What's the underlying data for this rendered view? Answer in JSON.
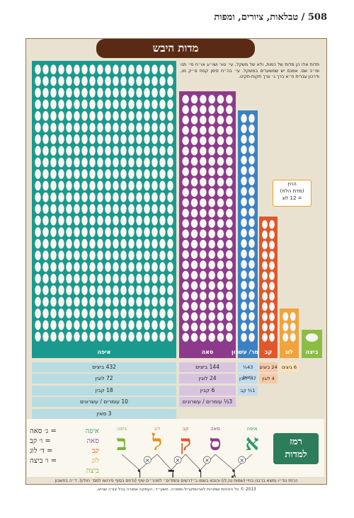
{
  "header": {
    "page_title": "508 / טבלאות, ציורים, ומפות"
  },
  "title": "מדות היבש",
  "intro_text": "מדות אלו הן מדות של כמות, ולא של משקל, עי׳ טור ושו״ע או״ח סי׳ תנו ומ״ב שם. אמנם יש שמשערים במשקל. עי׳ בה״ח סימן קסח ס״ק מו, ודרכון עברית ח״א ברך ג׳ ערך תקוח-תקיט.",
  "colors": {
    "eifa": "#1a9a8e",
    "seah": "#8e3a8c",
    "omer": "#3b82c4",
    "kav": "#e0572b",
    "log": "#f1a43a",
    "beitza": "#8bbd45",
    "background": "#e9e2d0",
    "title": "#5a2a14"
  },
  "chart_data": {
    "type": "bar",
    "title": "מדות היבש",
    "unit": "ביצים",
    "categories": [
      "איפה",
      "סאה",
      "עומר/עשרון",
      "קב",
      "לוג",
      "ביצה"
    ],
    "values": [
      432,
      144,
      43.2,
      24,
      6,
      1
    ]
  },
  "bars": {
    "eifa": {
      "label": "איפה",
      "eggs": 432,
      "cols": 18,
      "rows": 24
    },
    "seah": {
      "label": "סאה",
      "eggs": 144,
      "cols": 6,
      "rows": 24
    },
    "omer": {
      "label": "עומר/ עשרון",
      "eggs": "43⅕",
      "cols": 2,
      "rows": 22
    },
    "kav": {
      "label": "קב",
      "eggs": 24,
      "cols": 2,
      "rows": 12
    },
    "log": {
      "label": "לוג",
      "eggs": 6,
      "cols": 2,
      "rows": 3
    },
    "beitza": {
      "label": "ביצה",
      "eggs": 1,
      "cols": 1,
      "rows": 1
    }
  },
  "hin": {
    "line1": "ההין",
    "line2": "(מדת הלח)",
    "line3": "= 12 לוג"
  },
  "eifa_rows": [
    "432 ביצים",
    "72 לוגין",
    "18 קבין",
    "10 עומרים / עשרונים",
    "3 סאין"
  ],
  "seah_rows": [
    "144 ביצים",
    "24 לוגין",
    "6 קבין",
    "3⅓ עומרים / עשרונים"
  ],
  "omer_rows": [
    "43⅕ ביצים",
    "7⅕ לוגין",
    "1⅘ קב"
  ],
  "kav_rows": [
    "24 ביצים",
    "4 לוגין"
  ],
  "log_rows": [
    "6 ביצים"
  ],
  "remez": {
    "title_line1": "רמז",
    "title_line2": "למדות",
    "letters": [
      {
        "name": "איפה",
        "letter": "א",
        "lower": "",
        "color": "#2e9a6e"
      },
      {
        "name": "סאה",
        "letter": "ס",
        "lower": "ג",
        "color": "#8e3a8c"
      },
      {
        "name": "קב",
        "letter": "ק",
        "lower": "ו",
        "color": "#e0572b"
      },
      {
        "name": "לוג",
        "letter": "ל",
        "lower": "ד",
        "color": "#e88f1a"
      },
      {
        "name": "ביצה",
        "letter": "ב",
        "lower": "ו",
        "color": "#7cb33a"
      }
    ],
    "times": "×",
    "equations": [
      {
        "left": "איפה",
        "right": "= ג׳ סאה"
      },
      {
        "left": "סאה",
        "right": "= ו׳ קב"
      },
      {
        "left": "קב",
        "right": "= ד׳ לוג"
      },
      {
        "left": "לוג",
        "right": "= ו׳ ביצה"
      },
      {
        "left": "ביצה",
        "right": ""
      }
    ]
  },
  "footnote": "הרמז נוד״ו נמצא ברבנו בחיי (שמות טז,לו) והובא בשמו ב״דרשים נחמדים״ למהר״ם שיף (נדפס בסוף פירושו למס׳ חולין). ד״ה בחשבון",
  "copyright": "2013 © כל הזכויות שמורות לארטסקרול-מסורה. תשע״ד. העתקה אסורה בכל צורה שהיא."
}
